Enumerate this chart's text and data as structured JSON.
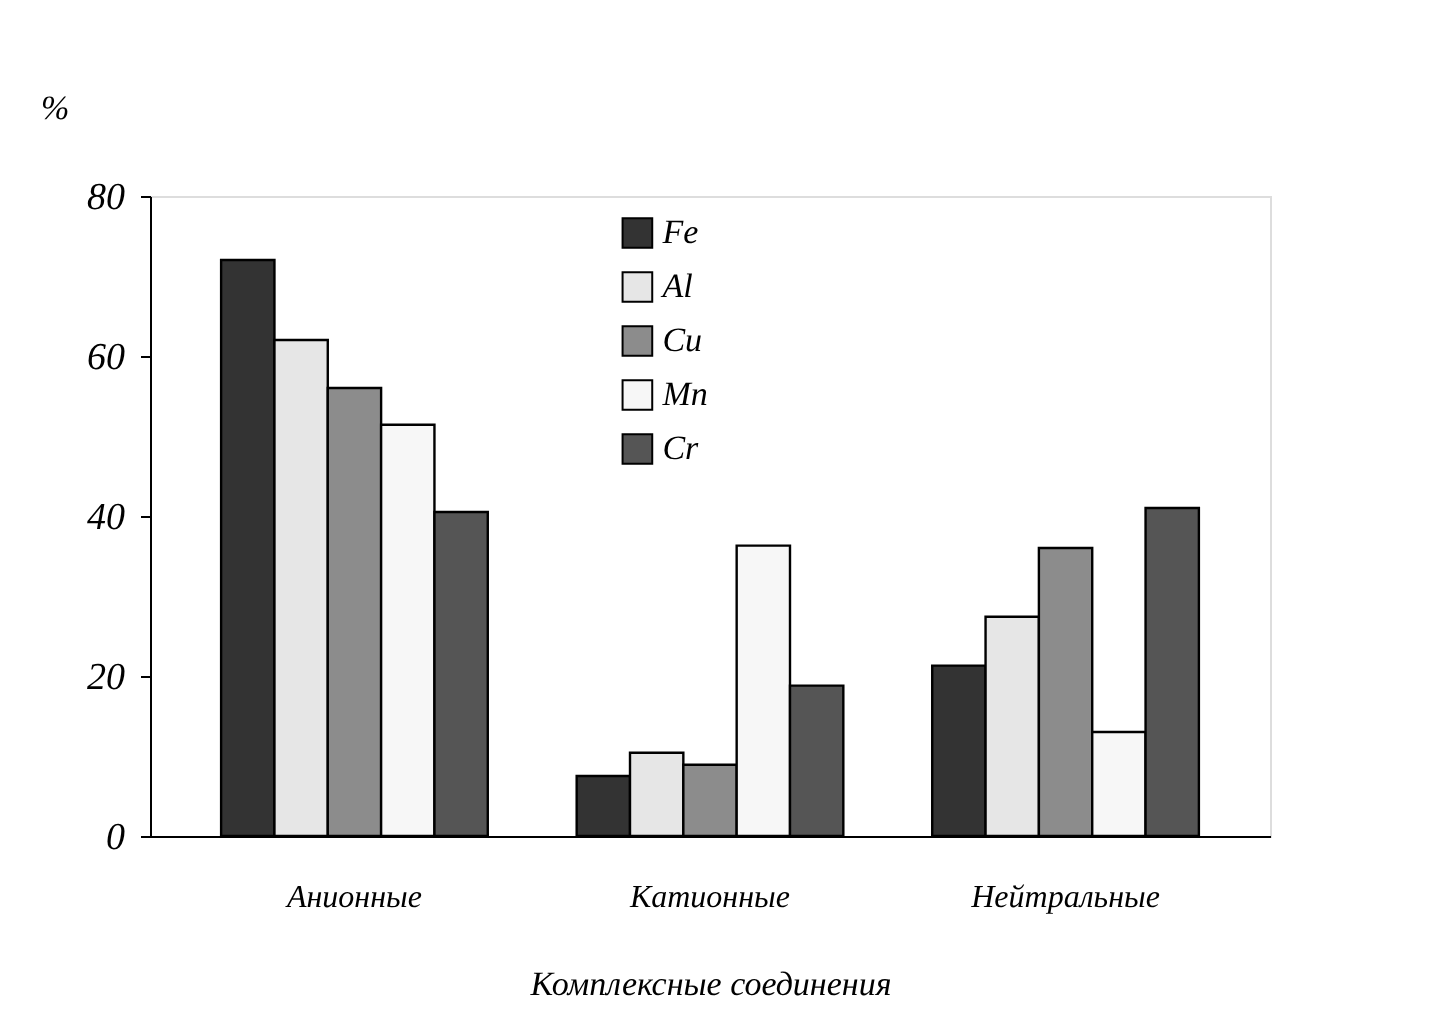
{
  "chart_data": {
    "type": "bar",
    "xlabel": "Комплексные соединения",
    "ylabel": "%",
    "categories": [
      "Анионные",
      "Катионные",
      "Нейтральные"
    ],
    "series": [
      {
        "name": "Fe",
        "color": "#333333",
        "values": [
          72,
          7.5,
          21.3
        ]
      },
      {
        "name": "Al",
        "color": "#e6e6e6",
        "values": [
          62,
          10.4,
          27.4
        ]
      },
      {
        "name": "Cu",
        "color": "#8c8c8c",
        "values": [
          56,
          8.9,
          36
        ]
      },
      {
        "name": "Mn",
        "color": "#f7f7f7",
        "values": [
          51.4,
          36.3,
          13
        ]
      },
      {
        "name": "Cr",
        "color": "#555555",
        "values": [
          40.5,
          18.8,
          41
        ]
      }
    ],
    "ylim": [
      0,
      80
    ],
    "yticks": [
      0,
      20,
      40,
      60,
      80
    ],
    "grid": false,
    "legend": "top"
  }
}
